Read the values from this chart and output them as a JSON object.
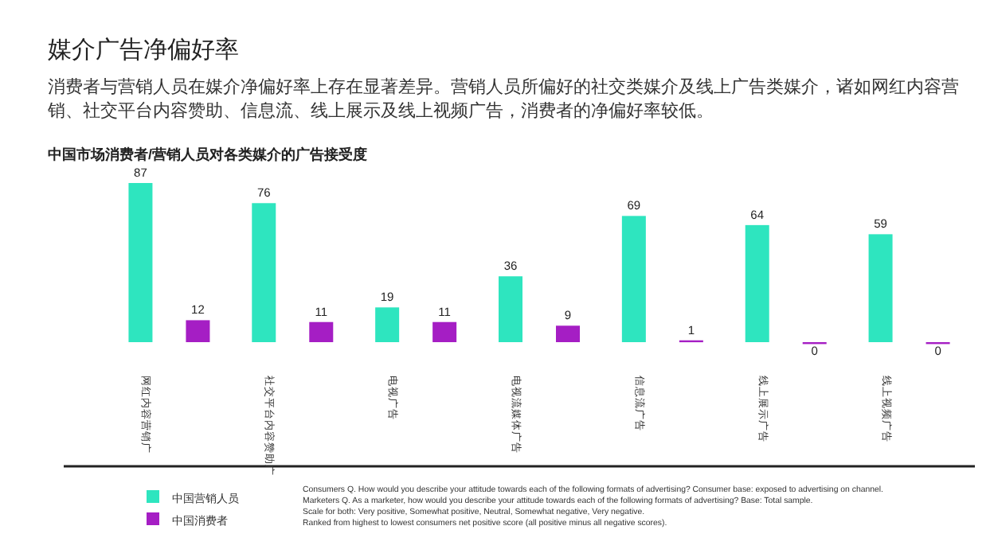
{
  "chart_data": {
    "type": "bar",
    "title": "媒介广告净偏好率",
    "subtitle": "消费者与营销人员在媒介净偏好率上存在显著差异。营销人员所偏好的社交类媒介及线上广告类媒介，诸如网红内容营销、社交平台内容赞助、信息流、线上展示及线上视频广告，消费者的净偏好率较低。",
    "categories": [
      "网红内容营销广",
      "社交平台内容赞助广",
      "电视广告",
      "电视流媒体广告",
      "信息流广告",
      "线上展示广告",
      "线上视频广告"
    ],
    "series": [
      {
        "name": "中国营销人员",
        "color": "#2ee5bf",
        "values": [
          87,
          76,
          19,
          36,
          69,
          64,
          59
        ]
      },
      {
        "name": "中国消费者",
        "color": "#a51ec4",
        "values": [
          12,
          11,
          11,
          9,
          1,
          0,
          0
        ]
      }
    ],
    "data_labels": true,
    "legend": "bottom left",
    "annotations": [
      "中国市场消费者/营销人员对各类媒介的广告接受度",
      "Consumers Q. How would you describe your attitude towards each of the following formats of advertising? Consumer base: exposed to advertising on channel.",
      "Marketers Q. As a marketer, how would you describe your attitude towards each of the following formats of advertising? Base: Total sample.",
      "Scale for both: Very positive, Somewhat positive, Neutral, Somewhat negative, Very negative.",
      "Ranked from highest to lowest consumers net positive score (all positive minus all negative scores)."
    ]
  }
}
